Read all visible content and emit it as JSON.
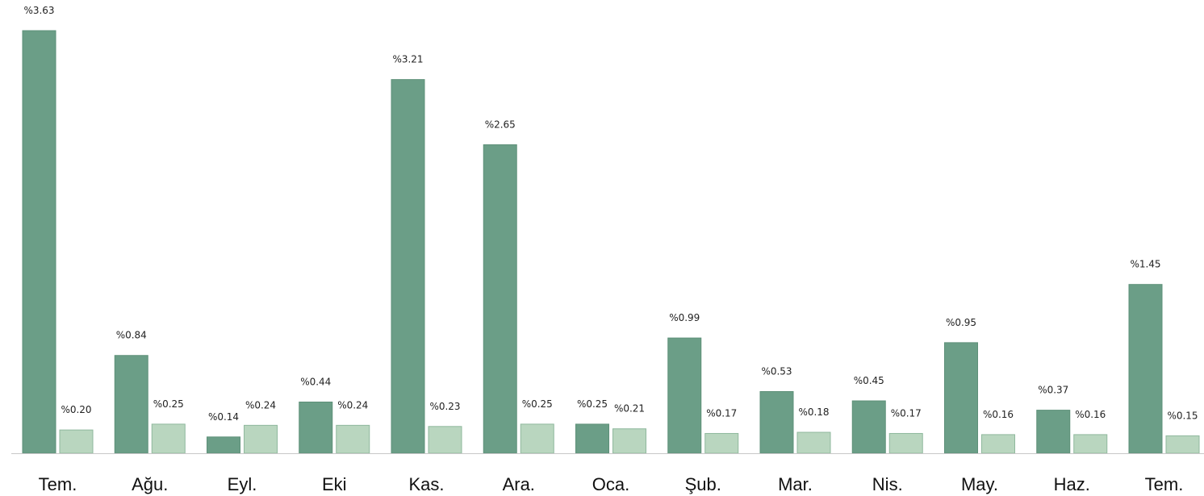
{
  "chart_data": {
    "type": "bar",
    "title": "",
    "xlabel": "",
    "ylabel": "",
    "value_prefix": "%",
    "ylim": [
      0,
      3.63
    ],
    "grid": false,
    "legend": "none",
    "categories": [
      "Tem.",
      "Ağu.",
      "Eyl.",
      "Eki",
      "Kas.",
      "Ara.",
      "Oca.",
      "Şub.",
      "Mar.",
      "Nis.",
      "May.",
      "Haz.",
      "Tem."
    ],
    "series": [
      {
        "color": "#6b9e87",
        "values": [
          3.63,
          0.84,
          0.14,
          0.44,
          3.21,
          2.65,
          0.25,
          0.99,
          0.53,
          0.45,
          0.95,
          0.37,
          1.45
        ],
        "labels": [
          "%3.63",
          "%0.84",
          "%0.14",
          "%0.44",
          "%3.21",
          "%2.65",
          "%0.25",
          "%0.99",
          "%0.53",
          "%0.45",
          "%0.95",
          "%0.37",
          "%1.45"
        ]
      },
      {
        "color": "#b9d6bf",
        "values": [
          0.2,
          0.25,
          0.24,
          0.24,
          0.23,
          0.25,
          0.21,
          0.17,
          0.18,
          0.17,
          0.16,
          0.16,
          0.15
        ],
        "labels": [
          "%0.20",
          "%0.25",
          "%0.24",
          "%0.24",
          "%0.23",
          "%0.25",
          "%0.21",
          "%0.17",
          "%0.18",
          "%0.17",
          "%0.16",
          "%0.16",
          "%0.15"
        ]
      }
    ],
    "axis_color": "#c8c8c8"
  }
}
